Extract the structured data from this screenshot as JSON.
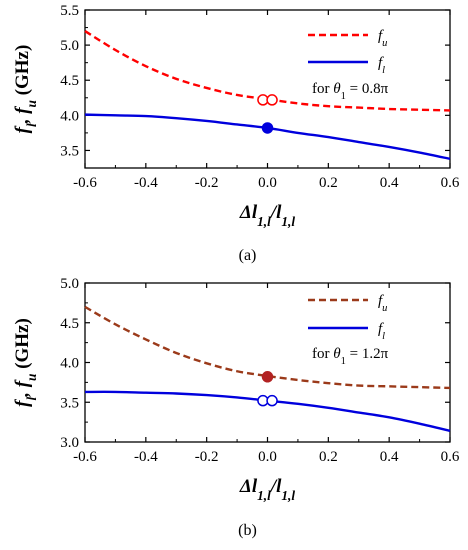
{
  "chart_data": [
    {
      "type": "line",
      "panel_label": "(a)",
      "xlabel": "Δl1,l/l1,l",
      "ylabel": "fl, fu (GHz)",
      "xlim": [
        -0.6,
        0.6
      ],
      "ylim": [
        3.25,
        5.5
      ],
      "xticks": [
        "-0.6",
        "-0.4",
        "-0.2",
        "0.0",
        "0.2",
        "0.4",
        "0.6"
      ],
      "yticks": [
        "3.5",
        "4.0",
        "4.5",
        "5.0",
        "5.5"
      ],
      "annotation": "for θ1 = 0.8π",
      "legend_position": "top-right",
      "series": [
        {
          "name": "fu",
          "color": "#ff0000",
          "dash": "dashed",
          "x": [
            -0.6,
            -0.5,
            -0.4,
            -0.3,
            -0.2,
            -0.1,
            0.0,
            0.1,
            0.2,
            0.3,
            0.4,
            0.5,
            0.6
          ],
          "y": [
            5.2,
            4.93,
            4.7,
            4.52,
            4.39,
            4.29,
            4.23,
            4.17,
            4.13,
            4.11,
            4.09,
            4.08,
            4.07
          ]
        },
        {
          "name": "fl",
          "color": "#0000dd",
          "dash": "solid",
          "x": [
            -0.6,
            -0.5,
            -0.4,
            -0.3,
            -0.2,
            -0.1,
            0.0,
            0.1,
            0.2,
            0.3,
            0.4,
            0.5,
            0.6
          ],
          "y": [
            4.01,
            4.0,
            3.99,
            3.96,
            3.92,
            3.87,
            3.82,
            3.75,
            3.69,
            3.62,
            3.55,
            3.47,
            3.38
          ]
        }
      ],
      "markers": [
        {
          "x": -0.015,
          "y": 4.22,
          "color": "#ff0000",
          "filled": false
        },
        {
          "x": 0.015,
          "y": 4.22,
          "color": "#ff0000",
          "filled": false
        },
        {
          "x": 0.0,
          "y": 3.82,
          "color": "#0000dd",
          "filled": true
        }
      ]
    },
    {
      "type": "line",
      "panel_label": "(b)",
      "xlabel": "Δl1,l/l1,l",
      "ylabel": "fl, fu (GHz)",
      "xlim": [
        -0.6,
        0.6
      ],
      "ylim": [
        3.0,
        5.0
      ],
      "xticks": [
        "-0.6",
        "-0.4",
        "-0.2",
        "0.0",
        "0.2",
        "0.4",
        "0.6"
      ],
      "yticks": [
        "3.0",
        "3.5",
        "4.0",
        "4.5",
        "5.0"
      ],
      "annotation": "for θ1 = 1.2π",
      "legend_position": "top-right",
      "series": [
        {
          "name": "fu",
          "color": "#9b3a1a",
          "dash": "dashed",
          "x": [
            -0.6,
            -0.5,
            -0.4,
            -0.3,
            -0.2,
            -0.1,
            0.0,
            0.1,
            0.2,
            0.3,
            0.4,
            0.5,
            0.6
          ],
          "y": [
            4.7,
            4.48,
            4.29,
            4.12,
            3.99,
            3.89,
            3.83,
            3.78,
            3.74,
            3.71,
            3.7,
            3.69,
            3.68
          ]
        },
        {
          "name": "fl",
          "color": "#0000dd",
          "dash": "solid",
          "x": [
            -0.6,
            -0.5,
            -0.4,
            -0.3,
            -0.2,
            -0.1,
            0.0,
            0.1,
            0.2,
            0.3,
            0.4,
            0.5,
            0.6
          ],
          "y": [
            3.63,
            3.63,
            3.62,
            3.61,
            3.59,
            3.56,
            3.52,
            3.48,
            3.43,
            3.37,
            3.31,
            3.23,
            3.14
          ]
        }
      ],
      "markers": [
        {
          "x": 0.0,
          "y": 3.82,
          "color": "#b22222",
          "filled": true
        },
        {
          "x": -0.015,
          "y": 3.52,
          "color": "#0000dd",
          "filled": false
        },
        {
          "x": 0.015,
          "y": 3.52,
          "color": "#0000dd",
          "filled": false
        }
      ]
    }
  ]
}
